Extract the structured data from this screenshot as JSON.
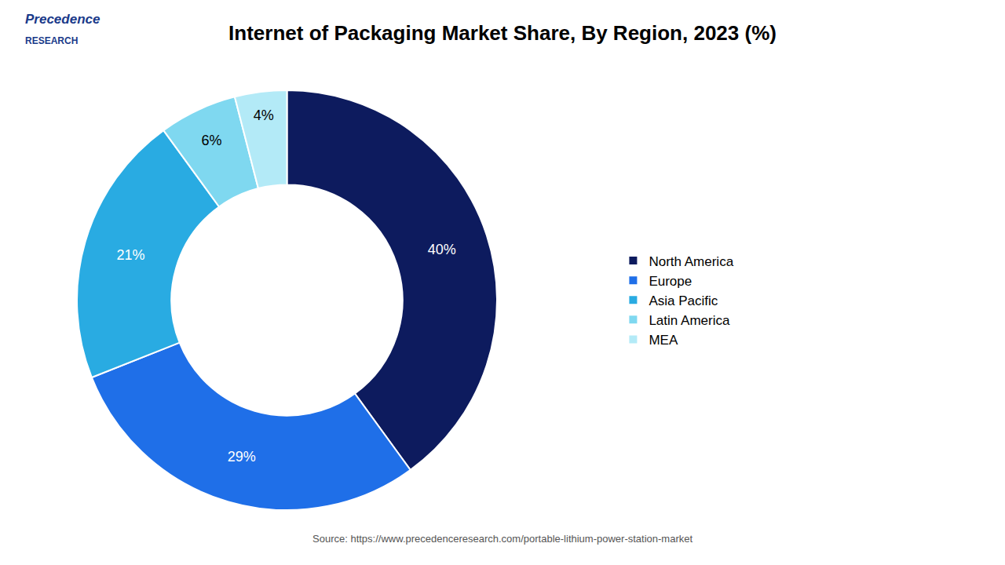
{
  "chart_data": {
    "type": "pie",
    "title": "Internet of Packaging Market Share, By Region, 2023 (%)",
    "categories": [
      "North America",
      "Europe",
      "Asia Pacific",
      "Latin America",
      "MEA"
    ],
    "values": [
      40,
      29,
      21,
      6,
      4
    ],
    "value_labels": [
      "40%",
      "29%",
      "21%",
      "6%",
      "4%"
    ],
    "colors": [
      "#0d1b5e",
      "#1f6fe8",
      "#29abe2",
      "#7fd8f0",
      "#b3eaf7"
    ],
    "data_labels": true,
    "legend": "right",
    "annotations": [
      "Precedence",
      "RESEARCH",
      "Source: https://www.precedenceresearch.com/portable-lithium-power-station-market"
    ]
  }
}
